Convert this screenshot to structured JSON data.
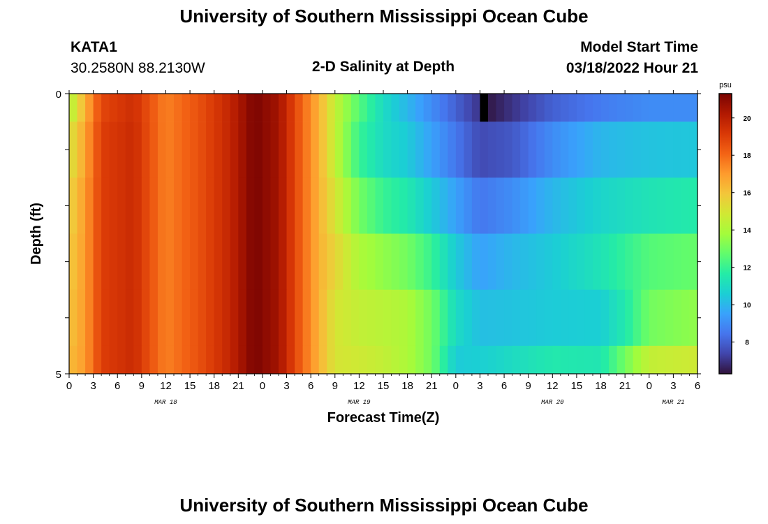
{
  "page": {
    "title": "University of Southern Mississippi Ocean Cube",
    "footer_title": "University of Southern Mississippi Ocean Cube",
    "station": "KATA1",
    "coordinates": "30.2580N  88.2130W",
    "model_start_label": "Model Start Time",
    "model_start_value": "03/18/2022 Hour 21"
  },
  "chart_data": {
    "type": "heatmap",
    "title": "2-D Salinity at Depth",
    "xlabel": "Forecast Time(Z)",
    "ylabel": "Depth (ft)",
    "x_tick_labels": [
      "0",
      "3",
      "6",
      "9",
      "12",
      "15",
      "18",
      "21",
      "0",
      "3",
      "6",
      "9",
      "12",
      "15",
      "18",
      "21",
      "0",
      "3",
      "6",
      "9",
      "12",
      "15",
      "18",
      "21",
      "0",
      "3",
      "6"
    ],
    "x_hours_since_mar18_00": [
      0,
      3,
      6,
      9,
      12,
      15,
      18,
      21,
      24,
      27,
      30,
      33,
      36,
      39,
      42,
      45,
      48,
      51,
      54,
      57,
      60,
      63,
      66,
      69,
      72,
      75,
      78
    ],
    "x_range_hours": [
      0,
      78
    ],
    "date_labels": [
      {
        "text": "MAR 18",
        "hour": 12
      },
      {
        "text": "MAR 19",
        "hour": 36
      },
      {
        "text": "MAR 20",
        "hour": 60
      },
      {
        "text": "MAR 21",
        "hour": 75
      }
    ],
    "y_tick_labels": [
      "0",
      "5"
    ],
    "y_range_ft": [
      0,
      5
    ],
    "colorbar": {
      "unit": "psu",
      "range": [
        6.3,
        21.3
      ],
      "tick_values": [
        8,
        10,
        12,
        14,
        16,
        18,
        20
      ],
      "tick_labels": [
        "8",
        "10",
        "12",
        "14",
        "16",
        "18",
        "20"
      ]
    },
    "depth_layers": [
      {
        "top": 0.0,
        "bottom": 0.5,
        "knots_hour": [
          0,
          2,
          4,
          8,
          12,
          16,
          20,
          23,
          26,
          29,
          31,
          33,
          36,
          39,
          42,
          45,
          48,
          51,
          52,
          55,
          60,
          66,
          72,
          78
        ],
        "knots_salinity": [
          14,
          16.5,
          18.8,
          19.5,
          17.5,
          18.5,
          19.8,
          21.3,
          20.5,
          18,
          16.5,
          14.5,
          12.5,
          11,
          10,
          9,
          8,
          7,
          6.4,
          7,
          8,
          8.6,
          9,
          9
        ]
      },
      {
        "top": 0.5,
        "bottom": 1.5,
        "knots_hour": [
          0,
          2,
          4,
          8,
          12,
          16,
          20,
          23,
          26,
          29,
          31,
          33,
          36,
          39,
          42,
          45,
          48,
          51,
          55,
          60,
          66,
          72,
          78
        ],
        "knots_salinity": [
          15,
          16.8,
          19,
          19.6,
          17.5,
          18.5,
          19.8,
          21.3,
          20.5,
          18,
          16.5,
          14.5,
          12,
          11,
          10.5,
          9.5,
          8.5,
          7.5,
          7.8,
          9,
          10,
          10.3,
          10.4
        ]
      },
      {
        "top": 1.5,
        "bottom": 2.5,
        "knots_hour": [
          0,
          2,
          4,
          8,
          12,
          16,
          20,
          23,
          26,
          29,
          31,
          33,
          36,
          39,
          42,
          45,
          48,
          51,
          55,
          60,
          66,
          72,
          78
        ],
        "knots_salinity": [
          15.5,
          17,
          19,
          19.6,
          17.5,
          18.5,
          19.8,
          21.3,
          20.5,
          18,
          16.5,
          15,
          13,
          12,
          11.5,
          10.5,
          9.5,
          8.5,
          9,
          10,
          10.8,
          11.3,
          11.6
        ]
      },
      {
        "top": 2.5,
        "bottom": 3.5,
        "knots_hour": [
          0,
          2,
          4,
          8,
          12,
          16,
          20,
          23,
          26,
          29,
          31,
          33,
          36,
          39,
          42,
          45,
          48,
          51,
          55,
          60,
          66,
          72,
          78
        ],
        "knots_salinity": [
          15.8,
          17,
          19,
          19.6,
          17.5,
          18.5,
          19.8,
          21.3,
          20.5,
          18,
          16.5,
          15.5,
          14,
          13.5,
          13,
          12,
          10.5,
          9.5,
          10,
          10.5,
          11.3,
          12.5,
          12.8
        ]
      },
      {
        "top": 3.5,
        "bottom": 4.5,
        "knots_hour": [
          0,
          2,
          4,
          8,
          12,
          16,
          20,
          23,
          26,
          29,
          31,
          33,
          36,
          39,
          42,
          45,
          48,
          51,
          55,
          60,
          66,
          69,
          72,
          78
        ],
        "knots_salinity": [
          16,
          17,
          19,
          19.6,
          17.5,
          18.5,
          19.8,
          21.3,
          20.5,
          18,
          16.5,
          15,
          14.5,
          14.3,
          14,
          13,
          11,
          10.2,
          10.3,
          10.5,
          10.6,
          11.5,
          13,
          13.5
        ]
      },
      {
        "top": 4.5,
        "bottom": 5.0,
        "knots_hour": [
          0,
          2,
          4,
          8,
          12,
          16,
          20,
          23,
          26,
          29,
          31,
          33,
          36,
          39,
          42,
          45,
          48,
          51,
          55,
          60,
          66,
          69,
          72,
          78
        ],
        "knots_salinity": [
          16.2,
          17,
          19,
          19.6,
          17.5,
          18.5,
          19.8,
          21.3,
          20.5,
          18,
          16.5,
          15,
          14.8,
          14.5,
          14,
          13,
          10.5,
          10.6,
          11,
          11.5,
          11.4,
          13,
          14.5,
          14.8
        ]
      }
    ],
    "missing_cells": [
      {
        "hour": 51,
        "depth_top": 0.0,
        "depth_bottom": 0.5
      }
    ]
  },
  "colors": {
    "axis": "#000000",
    "missing": "#000000",
    "turbo_stops": [
      "#30123b",
      "#4145ab",
      "#4675ed",
      "#39a2fc",
      "#1bcfd4",
      "#24eca6",
      "#61fc6c",
      "#a4fc3b",
      "#d1e834",
      "#f3c63a",
      "#fe9b2d",
      "#f36315",
      "#d93806",
      "#b11901",
      "#7a0402"
    ]
  }
}
